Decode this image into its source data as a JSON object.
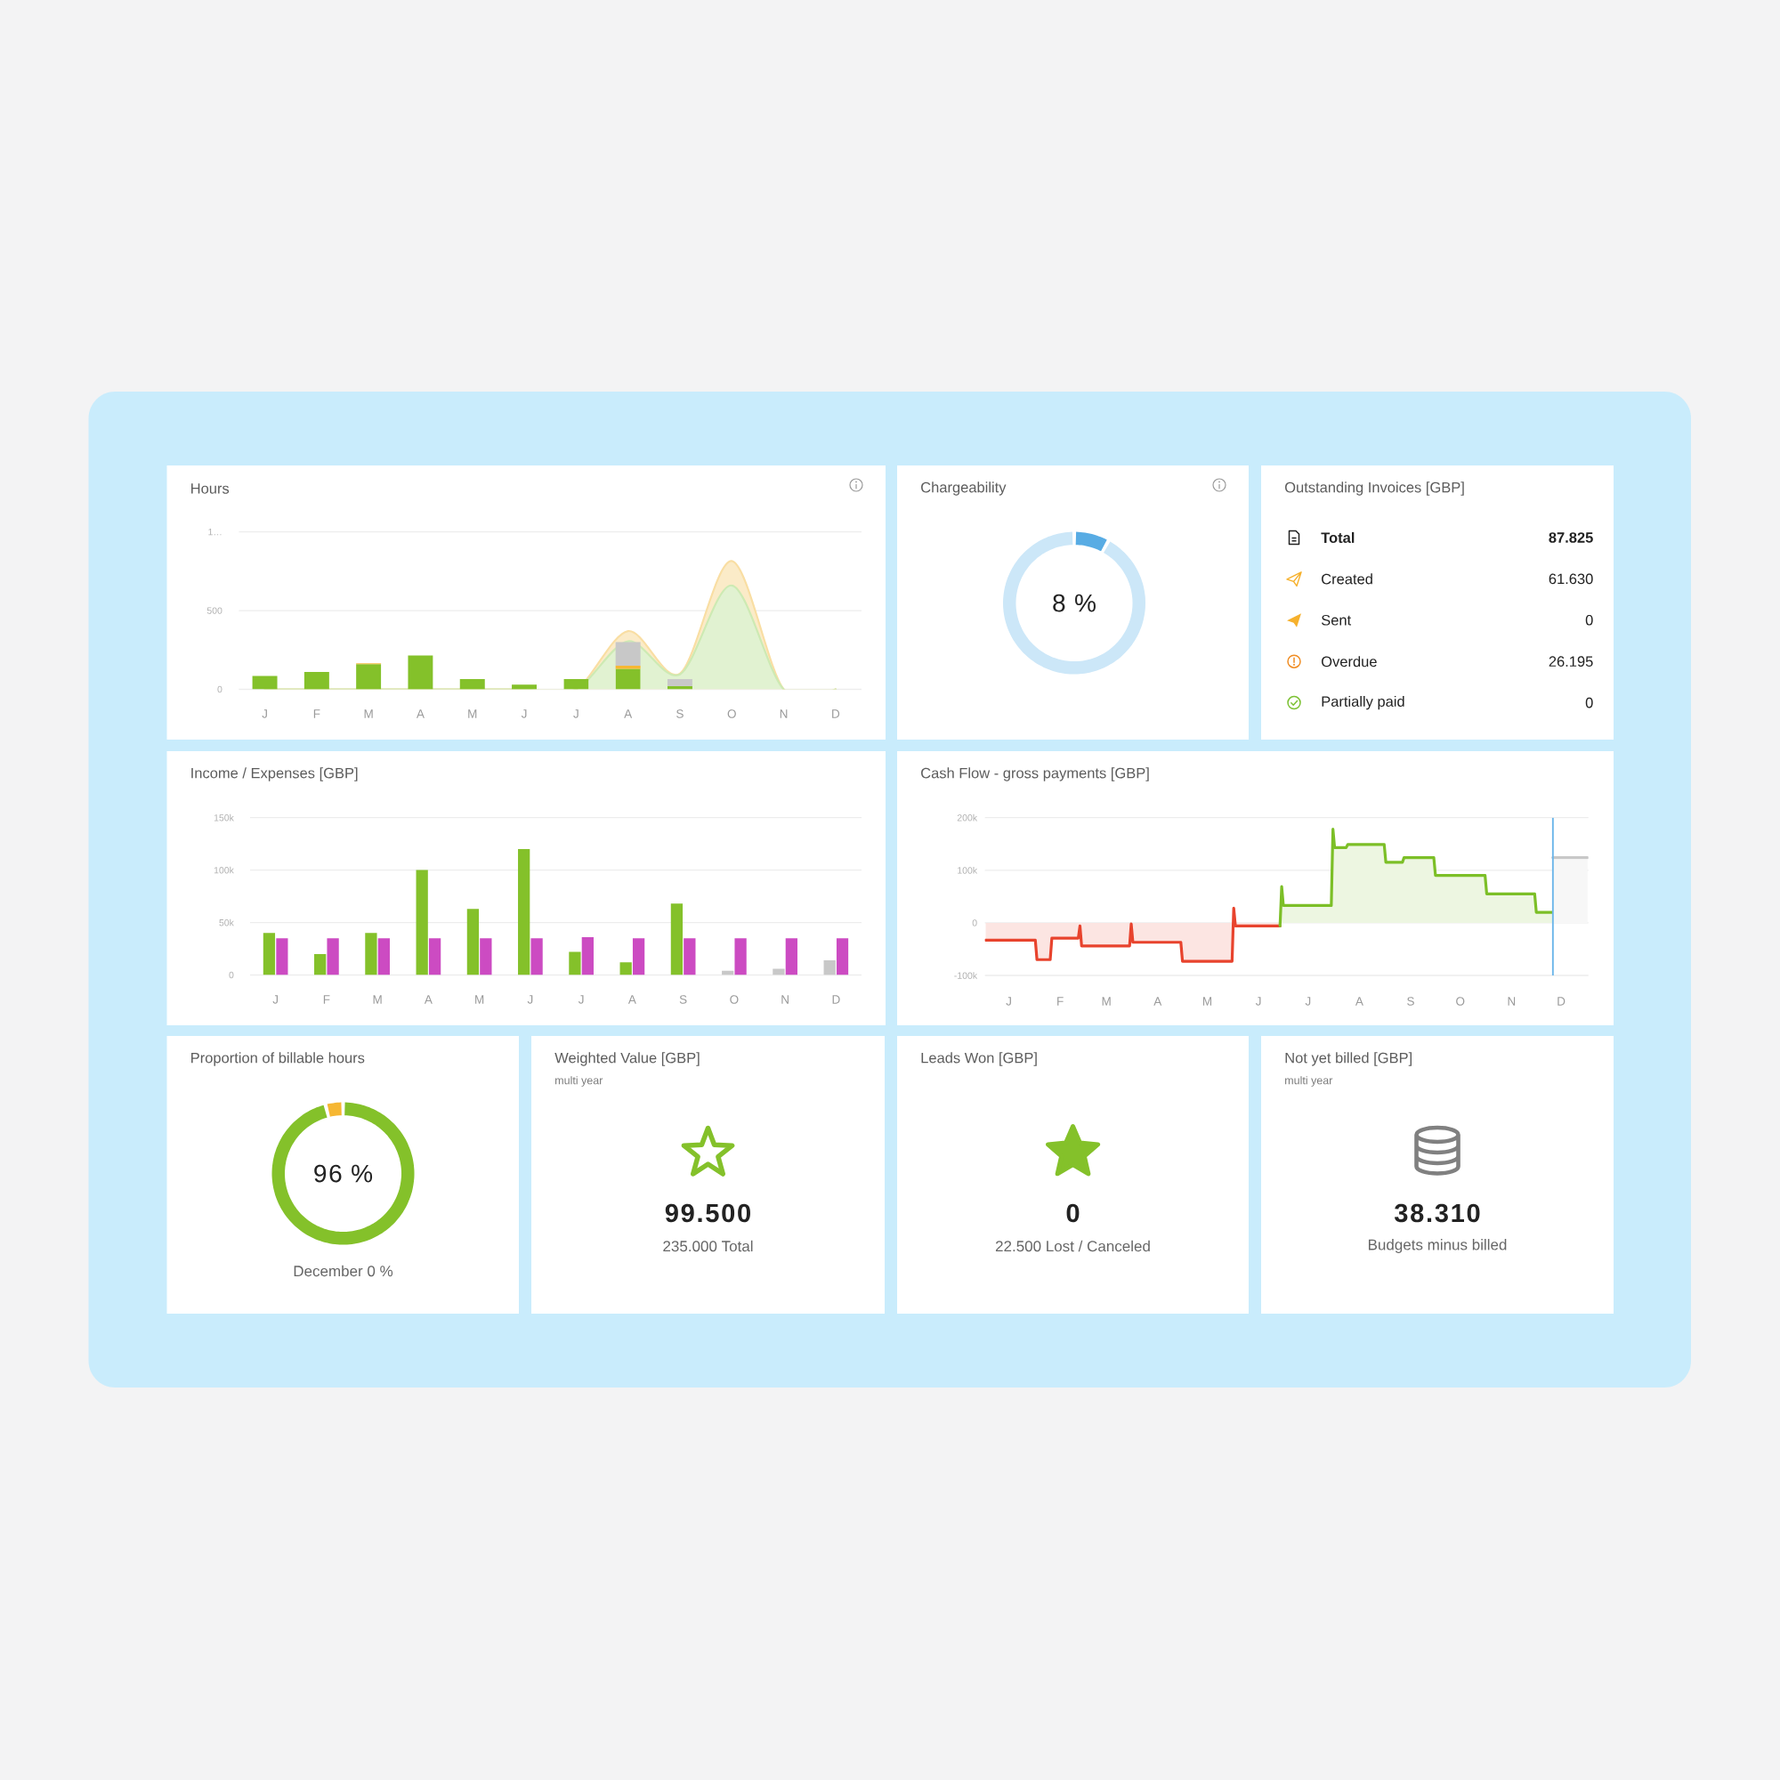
{
  "chart_data": [
    {
      "type": "bar",
      "title": "Hours",
      "stacked": true,
      "categories": [
        "J",
        "F",
        "M",
        "A",
        "M",
        "J",
        "J",
        "A",
        "S",
        "O",
        "N",
        "D"
      ],
      "series": [
        {
          "color": "#84c12a",
          "values": [
            85,
            110,
            160,
            215,
            65,
            30,
            65,
            130,
            20,
            null,
            null,
            null
          ]
        },
        {
          "color": "#f7b733",
          "values": [
            null,
            null,
            5,
            null,
            null,
            null,
            null,
            20,
            null,
            null,
            null,
            null
          ]
        },
        {
          "color": "#c8c8c8",
          "values": [
            null,
            null,
            null,
            null,
            null,
            null,
            null,
            150,
            45,
            null,
            null,
            null
          ]
        },
        {
          "type": "area",
          "color": "#cdeab3",
          "values": [
            0,
            0,
            0,
            0,
            0,
            0,
            0,
            305,
            95,
            660,
            0,
            0
          ]
        },
        {
          "type": "area",
          "color": "#f9dea3",
          "values": [
            0,
            0,
            0,
            0,
            0,
            0,
            0,
            65,
            5,
            155,
            0,
            0
          ]
        }
      ],
      "ylim": [
        0,
        1000
      ],
      "yticks": [
        0,
        500,
        {
          "value": 1000,
          "label": "1…"
        }
      ],
      "grid": "y"
    },
    {
      "type": "donut",
      "title": "Chargeability",
      "categories": [
        null,
        null
      ],
      "values": [
        8,
        92
      ],
      "colors": [
        "#58ace4",
        "#cce7f8"
      ],
      "annotations": [
        "8 %"
      ]
    },
    {
      "type": "other",
      "title": "Outstanding Invoices [GBP]",
      "annotations": [
        "Total",
        "87.825",
        "Created",
        "61.630",
        "Sent",
        "0",
        "Overdue",
        "26.195",
        "Partially paid",
        "0"
      ]
    },
    {
      "type": "bar",
      "title": "Income / Expenses [GBP]",
      "categories": [
        "J",
        "F",
        "M",
        "A",
        "M",
        "J",
        "J",
        "A",
        "S",
        "O",
        "N",
        "D"
      ],
      "series": [
        {
          "colors": [
            "#84c12a",
            "#84c12a",
            "#84c12a",
            "#84c12a",
            "#84c12a",
            "#84c12a",
            "#84c12a",
            "#84c12a",
            "#84c12a",
            "#c8c8c8",
            "#c8c8c8",
            "#c8c8c8"
          ],
          "values": [
            40000,
            20000,
            40000,
            100000,
            63000,
            120000,
            22000,
            12000,
            68000,
            4000,
            6000,
            14000
          ]
        },
        {
          "color": "#cc4bc2",
          "values": [
            35000,
            35000,
            35000,
            35000,
            35000,
            35000,
            36000,
            35000,
            35000,
            35000,
            35000,
            35000
          ]
        }
      ],
      "ylim": [
        0,
        150000
      ],
      "yticks": [
        0,
        {
          "value": 50000,
          "label": "50k"
        },
        {
          "value": 100000,
          "label": "100k"
        },
        {
          "value": 150000,
          "label": "150k"
        }
      ],
      "grid": "y"
    },
    {
      "type": "area",
      "title": "Cash Flow - gross payments [GBP]",
      "categories": [
        null,
        null,
        null,
        null,
        null,
        null,
        null,
        null,
        null,
        null,
        null,
        null,
        null,
        null,
        "J",
        null,
        null,
        null,
        null,
        null,
        null,
        null,
        null,
        null,
        null,
        null,
        null,
        null,
        null,
        null,
        null,
        null,
        null,
        null,
        null,
        null,
        null,
        null,
        null,
        null,
        null,
        null,
        null,
        null,
        null,
        "F",
        null,
        null,
        null,
        null,
        null,
        null,
        null,
        null,
        null,
        null,
        null,
        null,
        null,
        null,
        null,
        null,
        null,
        null,
        null,
        null,
        null,
        null,
        null,
        null,
        null,
        null,
        null,
        "M",
        null,
        null,
        null,
        null,
        null,
        null,
        null,
        null,
        null,
        null,
        null,
        null,
        null,
        null,
        null,
        null,
        null,
        null,
        null,
        null,
        null,
        null,
        null,
        null,
        null,
        null,
        null,
        null,
        null,
        null,
        "A",
        null,
        null,
        null,
        null,
        null,
        null,
        null,
        null,
        null,
        null,
        null,
        null,
        null,
        null,
        null,
        null,
        null,
        null,
        null,
        null,
        null,
        null,
        null,
        null,
        null,
        null,
        null,
        null,
        null,
        "M",
        null,
        null,
        null,
        null,
        null,
        null,
        null,
        null,
        null,
        null,
        null,
        null,
        null,
        null,
        null,
        null,
        null,
        null,
        null,
        null,
        null,
        null,
        null,
        null,
        null,
        null,
        null,
        null,
        null,
        null,
        "J",
        null,
        null,
        null,
        null,
        null,
        null,
        null,
        null,
        null,
        null,
        null,
        null,
        null,
        null,
        null,
        null,
        null,
        null,
        null,
        null,
        null,
        null,
        null,
        null,
        null,
        null,
        null,
        null,
        null,
        "J",
        null,
        null,
        null,
        null,
        null,
        null,
        null,
        null,
        null,
        null,
        null,
        null,
        null,
        null,
        null,
        null,
        null,
        null,
        null,
        null,
        null,
        null,
        null,
        null,
        null,
        null,
        null,
        null,
        null,
        null,
        "A",
        null,
        null,
        null,
        null,
        null,
        null,
        null,
        null,
        null,
        null,
        null,
        null,
        null,
        null,
        null,
        null,
        null,
        null,
        null,
        null,
        null,
        null,
        null,
        null,
        null,
        null,
        null,
        null,
        null,
        null,
        "S",
        null,
        null,
        null,
        null,
        null,
        null,
        null,
        null,
        null,
        null,
        null,
        null,
        null,
        null,
        null,
        null,
        null,
        null,
        null,
        null,
        null,
        null,
        null,
        null,
        null,
        null,
        null,
        null,
        null,
        "O",
        null,
        null,
        null,
        null,
        null,
        null,
        null,
        null,
        null,
        null,
        null,
        null,
        null,
        null,
        null,
        null,
        null,
        null,
        null,
        null,
        null,
        null,
        null,
        null,
        null,
        null,
        null,
        null,
        null,
        null,
        "N",
        null,
        null,
        null,
        null,
        null,
        null,
        null,
        null,
        null,
        null,
        null,
        null,
        null,
        null,
        null,
        null,
        null,
        null,
        null,
        null,
        null,
        null,
        null,
        null,
        null,
        null,
        null,
        null,
        null,
        "D",
        null,
        null,
        null,
        null,
        null,
        null,
        null,
        null,
        null,
        null,
        null,
        null,
        null,
        null,
        null,
        null
      ],
      "series": [
        {
          "color": "#e8432d",
          "values": [
            -33000,
            -33000,
            -33000,
            -33000,
            -33000,
            -33000,
            -33000,
            -33000,
            -33000,
            -33000,
            -33000,
            -33000,
            -33000,
            -33000,
            -33000,
            -33000,
            -33000,
            -33000,
            -33000,
            -33000,
            -33000,
            -33000,
            -33000,
            -33000,
            -33000,
            -33000,
            -33000,
            -33000,
            -33000,
            -33000,
            -33000,
            -70000,
            -70000,
            -70000,
            -70000,
            -70000,
            -70000,
            -70000,
            -70000,
            -70000,
            -29000,
            -29000,
            -29000,
            -29000,
            -29000,
            -29000,
            -29000,
            -29000,
            -29000,
            -29000,
            -29000,
            -29000,
            -29000,
            -29000,
            -29000,
            -29000,
            -29000,
            -6000,
            -44000,
            -44000,
            -44000,
            -44000,
            -44000,
            -44000,
            -44000,
            -44000,
            -44000,
            -44000,
            -44000,
            -44000,
            -44000,
            -44000,
            -44000,
            -44000,
            -44000,
            -44000,
            -44000,
            -44000,
            -44000,
            -44000,
            -44000,
            -44000,
            -44000,
            -44000,
            -44000,
            -44000,
            -44000,
            -44000,
            -2000,
            -37000,
            -37000,
            -37000,
            -37000,
            -37000,
            -37000,
            -37000,
            -37000,
            -37000,
            -37000,
            -37000,
            -37000,
            -37000,
            -37000,
            -37000,
            -37000,
            -37000,
            -37000,
            -37000,
            -37000,
            -37000,
            -37000,
            -37000,
            -37000,
            -37000,
            -37000,
            -37000,
            -37000,
            -37000,
            -37000,
            -73000,
            -73000,
            -73000,
            -73000,
            -73000,
            -73000,
            -73000,
            -73000,
            -73000,
            -73000,
            -73000,
            -73000,
            -73000,
            -73000,
            -73000,
            -73000,
            -73000,
            -73000,
            -73000,
            -73000,
            -73000,
            -73000,
            -73000,
            -73000,
            -73000,
            -73000,
            -73000,
            -73000,
            -73000,
            -73000,
            -73000,
            28000,
            -6000,
            -6000,
            -6000,
            -6000,
            -6000,
            -6000,
            -6000,
            -6000,
            -6000,
            -6000,
            -6000,
            -6000,
            -6000,
            -6000,
            -6000,
            -6000,
            -6000,
            -6000,
            -6000,
            -6000,
            -6000,
            -6000,
            -6000,
            -6000,
            -6000,
            -6000,
            -6000,
            -6000,
            null,
            null,
            null,
            null,
            null,
            null,
            null,
            null,
            null,
            null,
            null,
            null,
            null,
            null,
            null,
            null,
            null,
            null,
            null,
            null,
            null,
            null,
            null,
            null,
            null,
            null,
            null,
            null,
            null,
            null,
            null,
            null,
            null,
            null,
            null,
            null,
            null,
            null,
            null,
            null,
            null,
            null,
            null,
            null,
            null,
            null,
            null,
            null,
            null,
            null,
            null,
            null,
            null,
            null,
            null,
            null,
            null,
            null,
            null,
            null,
            null,
            null,
            null,
            null,
            null,
            null,
            null,
            null,
            null,
            null,
            null,
            null,
            null,
            null,
            null,
            null,
            null,
            null,
            null,
            null,
            null,
            null,
            null,
            null,
            null,
            null,
            null,
            null,
            null,
            null,
            null,
            null,
            null,
            null,
            null,
            null,
            null,
            null,
            null,
            null,
            null,
            null,
            null,
            null,
            null,
            null,
            null,
            null,
            null,
            null,
            null,
            null,
            null,
            null,
            null,
            null,
            null,
            null,
            null,
            null,
            null,
            null,
            null,
            null,
            null,
            null,
            null,
            null,
            null,
            null,
            null,
            null,
            null,
            null,
            null,
            null,
            null,
            null,
            null,
            null,
            null,
            null,
            null,
            null,
            null,
            null,
            null,
            null,
            null,
            null,
            null,
            null,
            null,
            null,
            null,
            null,
            null,
            null,
            null,
            null,
            null,
            null,
            null,
            null,
            null,
            null,
            null,
            null,
            null,
            null,
            null,
            null,
            null,
            null,
            null,
            null,
            null,
            null,
            null,
            null,
            null,
            null,
            null,
            null,
            null,
            null
          ]
        },
        {
          "color": "#7cbf27",
          "values": [
            null,
            null,
            null,
            null,
            null,
            null,
            null,
            null,
            null,
            null,
            null,
            null,
            null,
            null,
            null,
            null,
            null,
            null,
            null,
            null,
            null,
            null,
            null,
            null,
            null,
            null,
            null,
            null,
            null,
            null,
            null,
            null,
            null,
            null,
            null,
            null,
            null,
            null,
            null,
            null,
            null,
            null,
            null,
            null,
            null,
            null,
            null,
            null,
            null,
            null,
            null,
            null,
            null,
            null,
            null,
            null,
            null,
            null,
            null,
            null,
            null,
            null,
            null,
            null,
            null,
            null,
            null,
            null,
            null,
            null,
            null,
            null,
            null,
            null,
            null,
            null,
            null,
            null,
            null,
            null,
            null,
            null,
            null,
            null,
            null,
            null,
            null,
            null,
            null,
            null,
            null,
            null,
            null,
            null,
            null,
            null,
            null,
            null,
            null,
            null,
            null,
            null,
            null,
            null,
            null,
            null,
            null,
            null,
            null,
            null,
            null,
            null,
            null,
            null,
            null,
            null,
            null,
            null,
            null,
            null,
            null,
            null,
            null,
            null,
            null,
            null,
            null,
            null,
            null,
            null,
            null,
            null,
            null,
            null,
            null,
            null,
            null,
            null,
            null,
            null,
            null,
            null,
            null,
            null,
            null,
            null,
            null,
            null,
            null,
            null,
            null,
            null,
            null,
            null,
            null,
            null,
            null,
            null,
            null,
            null,
            null,
            null,
            null,
            null,
            null,
            null,
            null,
            null,
            null,
            null,
            null,
            null,
            null,
            null,
            null,
            null,
            null,
            null,
            -6000,
            69000,
            33000,
            33000,
            33000,
            33000,
            33000,
            33000,
            33000,
            33000,
            33000,
            33000,
            33000,
            33000,
            33000,
            33000,
            33000,
            33000,
            33000,
            33000,
            33000,
            33000,
            33000,
            33000,
            33000,
            33000,
            33000,
            33000,
            33000,
            33000,
            33000,
            33000,
            178000,
            143000,
            143000,
            143000,
            143000,
            143000,
            143000,
            143000,
            143000,
            149000,
            149000,
            149000,
            149000,
            149000,
            149000,
            149000,
            149000,
            149000,
            149000,
            149000,
            149000,
            149000,
            149000,
            149000,
            149000,
            149000,
            149000,
            149000,
            149000,
            149000,
            149000,
            149000,
            115000,
            115000,
            115000,
            115000,
            115000,
            115000,
            115000,
            115000,
            115000,
            115000,
            115000,
            124000,
            124000,
            124000,
            124000,
            124000,
            124000,
            124000,
            124000,
            124000,
            124000,
            124000,
            124000,
            124000,
            124000,
            124000,
            124000,
            124000,
            124000,
            124000,
            90000,
            90000,
            90000,
            90000,
            90000,
            90000,
            90000,
            90000,
            90000,
            90000,
            90000,
            90000,
            90000,
            90000,
            90000,
            90000,
            90000,
            90000,
            90000,
            90000,
            90000,
            90000,
            90000,
            90000,
            90000,
            90000,
            90000,
            90000,
            90000,
            90000,
            90000,
            55000,
            55000,
            55000,
            55000,
            55000,
            55000,
            55000,
            55000,
            55000,
            55000,
            55000,
            55000,
            55000,
            55000,
            55000,
            55000,
            55000,
            55000,
            55000,
            55000,
            55000,
            55000,
            55000,
            55000,
            55000,
            55000,
            55000,
            55000,
            55000,
            55000,
            20000,
            20000,
            20000,
            20000,
            20000,
            20000,
            20000,
            20000,
            20000,
            20000,
            20000,
            null,
            null,
            null,
            null,
            null,
            null,
            null,
            null,
            null,
            null,
            null,
            null,
            null,
            null,
            null,
            null,
            null,
            null,
            null,
            null,
            null
          ]
        },
        {
          "color": "#c8c8c8",
          "values": [
            null,
            null,
            null,
            null,
            null,
            null,
            null,
            null,
            null,
            null,
            null,
            null,
            null,
            null,
            null,
            null,
            null,
            null,
            null,
            null,
            null,
            null,
            null,
            null,
            null,
            null,
            null,
            null,
            null,
            null,
            null,
            null,
            null,
            null,
            null,
            null,
            null,
            null,
            null,
            null,
            null,
            null,
            null,
            null,
            null,
            null,
            null,
            null,
            null,
            null,
            null,
            null,
            null,
            null,
            null,
            null,
            null,
            null,
            null,
            null,
            null,
            null,
            null,
            null,
            null,
            null,
            null,
            null,
            null,
            null,
            null,
            null,
            null,
            null,
            null,
            null,
            null,
            null,
            null,
            null,
            null,
            null,
            null,
            null,
            null,
            null,
            null,
            null,
            null,
            null,
            null,
            null,
            null,
            null,
            null,
            null,
            null,
            null,
            null,
            null,
            null,
            null,
            null,
            null,
            null,
            null,
            null,
            null,
            null,
            null,
            null,
            null,
            null,
            null,
            null,
            null,
            null,
            null,
            null,
            null,
            null,
            null,
            null,
            null,
            null,
            null,
            null,
            null,
            null,
            null,
            null,
            null,
            null,
            null,
            null,
            null,
            null,
            null,
            null,
            null,
            null,
            null,
            null,
            null,
            null,
            null,
            null,
            null,
            null,
            null,
            null,
            null,
            null,
            null,
            null,
            null,
            null,
            null,
            null,
            null,
            null,
            null,
            null,
            null,
            null,
            null,
            null,
            null,
            null,
            null,
            null,
            null,
            null,
            null,
            null,
            null,
            null,
            null,
            null,
            null,
            null,
            null,
            null,
            null,
            null,
            null,
            null,
            null,
            null,
            null,
            null,
            null,
            null,
            null,
            null,
            null,
            null,
            null,
            null,
            null,
            null,
            null,
            null,
            null,
            null,
            null,
            null,
            null,
            null,
            null,
            null,
            null,
            null,
            null,
            null,
            null,
            null,
            null,
            null,
            null,
            null,
            null,
            null,
            null,
            null,
            null,
            null,
            null,
            null,
            null,
            null,
            null,
            null,
            null,
            null,
            null,
            null,
            null,
            null,
            null,
            null,
            null,
            null,
            null,
            null,
            null,
            null,
            null,
            null,
            null,
            null,
            null,
            null,
            null,
            null,
            null,
            null,
            null,
            null,
            null,
            null,
            null,
            null,
            null,
            null,
            null,
            null,
            null,
            null,
            null,
            null,
            null,
            null,
            null,
            null,
            null,
            null,
            null,
            null,
            null,
            null,
            null,
            null,
            null,
            null,
            null,
            null,
            null,
            null,
            null,
            null,
            null,
            null,
            null,
            null,
            null,
            null,
            null,
            null,
            null,
            null,
            null,
            null,
            null,
            null,
            null,
            null,
            null,
            null,
            null,
            null,
            null,
            null,
            null,
            null,
            null,
            null,
            null,
            null,
            null,
            null,
            null,
            null,
            null,
            null,
            null,
            null,
            null,
            null,
            null,
            null,
            null,
            null,
            null,
            null,
            null,
            null,
            null,
            null,
            null,
            null,
            null,
            null,
            124000,
            124000,
            124000,
            124000,
            124000,
            124000,
            124000,
            124000,
            124000,
            124000,
            124000,
            124000,
            124000,
            124000,
            124000,
            124000,
            124000,
            124000,
            124000,
            124000,
            124000,
            124000
          ]
        }
      ],
      "ylim": [
        -100000,
        200000
      ],
      "yticks": [
        {
          "value": -100000,
          "label": "-100k"
        },
        0,
        {
          "value": 100000,
          "label": "100k"
        },
        {
          "value": 200000,
          "label": "200k"
        }
      ],
      "grid": "y"
    },
    {
      "type": "donut",
      "title": "Proportion of billable hours",
      "categories": [
        null,
        null
      ],
      "values": [
        96,
        4
      ],
      "colors": [
        "#84c12a",
        "#f6b733"
      ],
      "annotations": [
        "96 %",
        "December 0 %"
      ]
    },
    {
      "type": "other",
      "title": "Weighted Value [GBP]",
      "subtitle": "multi year",
      "annotations": [
        "99.500",
        "235.000 Total"
      ]
    },
    {
      "type": "other",
      "title": "Leads Won [GBP]",
      "annotations": [
        "0",
        "22.500 Lost / Canceled"
      ]
    },
    {
      "type": "other",
      "title": "Not yet billed [GBP]",
      "subtitle": "multi year",
      "annotations": [
        "38.310",
        "Budgets minus billed"
      ]
    }
  ]
}
